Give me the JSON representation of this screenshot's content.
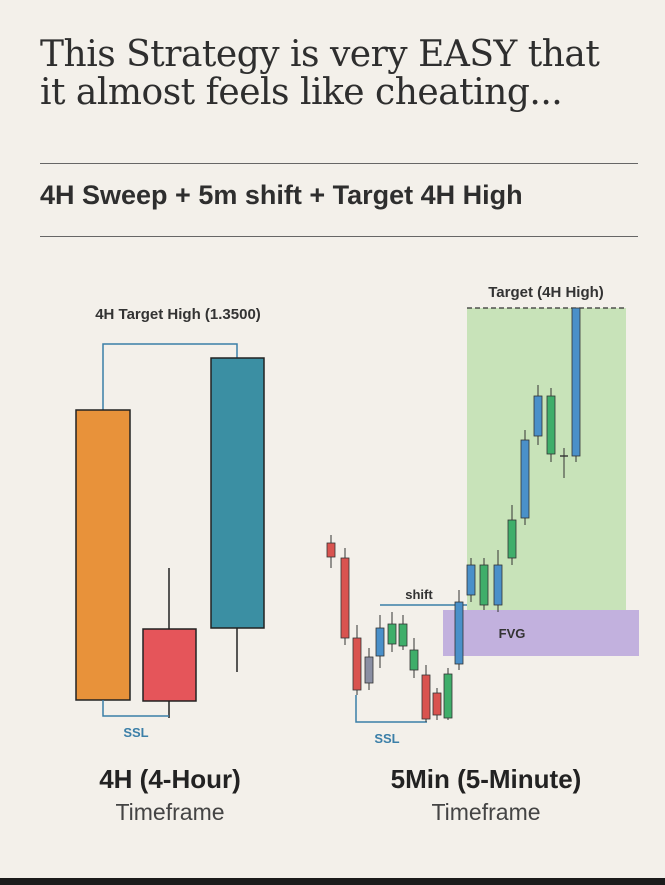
{
  "header": {
    "title_line1": "This Strategy is very EASY that",
    "title_line2": "it almost feels like cheating...",
    "subtitle": "4H Sweep + 5m shift + Target 4H High"
  },
  "left_chart": {
    "target_label": "4H Target High (1.3500)",
    "ssl_label": "SSL",
    "caption_title": "4H (4-Hour)",
    "caption_sub": "Timeframe",
    "colors": {
      "orange": "#e8923a",
      "red": "#e5555a",
      "teal": "#3b8fa3",
      "line": "#3b7fa8"
    }
  },
  "right_chart": {
    "target_label": "Target (4H High)",
    "shift_label": "shift",
    "fvg_label": "FVG",
    "ssl_label": "SSL",
    "caption_title": "5Min (5-Minute)",
    "caption_sub": "Timeframe",
    "colors": {
      "target_zone": "#bfe0b0",
      "fvg_zone": "#b9a6dc",
      "bull": "#3fae6a",
      "bear": "#d9534f",
      "blue": "#4a90c9",
      "grey": "#8a8fa3"
    }
  }
}
